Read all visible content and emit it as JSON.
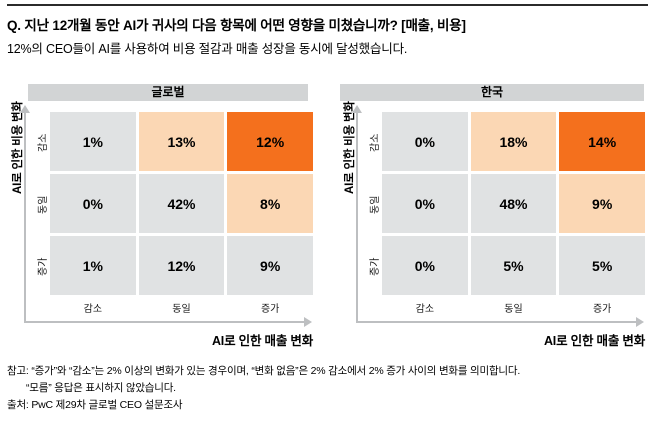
{
  "page": {
    "title": "Q. 지난 12개월 동안 AI가 귀사의 다음 항목에 어떤 영향을 미쳤습니까? [매출, 비용]",
    "subtitle": "12%의 CEO들이 AI를 사용하여 비용 절감과 매출 성장을 동시에 달성했습니다."
  },
  "axes": {
    "y_title": "AI로 인한 비용 변화",
    "x_title": "AI로 인한 매출 변화",
    "row_labels": [
      "감소",
      "동일",
      "증가"
    ],
    "col_labels": [
      "감소",
      "동일",
      "증가"
    ]
  },
  "colors": {
    "cell_gray": "#E0E2E3",
    "cell_light_orange": "#FBD7B4",
    "cell_orange": "#F4701D",
    "header_bar_gray": "#D2D4D5",
    "axis_arrow_gray": "#BDBFC1",
    "top_rule": "#2b2b2b"
  },
  "chart_data": [
    {
      "type": "heatmap",
      "title": "글로벌",
      "xlabel": "AI로 인한 매출 변화",
      "ylabel": "AI로 인한 비용 변화",
      "rows": [
        "감소",
        "동일",
        "증가"
      ],
      "cols": [
        "감소",
        "동일",
        "증가"
      ],
      "values": [
        [
          1,
          13,
          12
        ],
        [
          0,
          42,
          8
        ],
        [
          1,
          12,
          9
        ]
      ],
      "unit": "%",
      "cells": [
        [
          "1%",
          "13%",
          "12%"
        ],
        [
          "0%",
          "42%",
          "8%"
        ],
        [
          "1%",
          "12%",
          "9%"
        ]
      ],
      "cell_colors": [
        [
          "gray",
          "light_orange",
          "orange"
        ],
        [
          "gray",
          "gray",
          "light_orange"
        ],
        [
          "gray",
          "gray",
          "gray"
        ]
      ]
    },
    {
      "type": "heatmap",
      "title": "한국",
      "xlabel": "AI로 인한 매출 변화",
      "ylabel": "AI로 인한 비용 변화",
      "rows": [
        "감소",
        "동일",
        "증가"
      ],
      "cols": [
        "감소",
        "동일",
        "증가"
      ],
      "values": [
        [
          0,
          18,
          14
        ],
        [
          0,
          48,
          9
        ],
        [
          0,
          5,
          5
        ]
      ],
      "unit": "%",
      "cells": [
        [
          "0%",
          "18%",
          "14%"
        ],
        [
          "0%",
          "48%",
          "9%"
        ],
        [
          "0%",
          "5%",
          "5%"
        ]
      ],
      "cell_colors": [
        [
          "gray",
          "light_orange",
          "orange"
        ],
        [
          "gray",
          "gray",
          "light_orange"
        ],
        [
          "gray",
          "gray",
          "gray"
        ]
      ]
    }
  ],
  "footer": {
    "note1": "참고: “증가”와 “감소”는 2% 이상의 변화가 있는 경우이며, “변화 없음”은 2% 감소에서 2% 증가 사이의 변화를 의미합니다.",
    "note2": "“모름” 응답은 표시하지 않았습니다.",
    "source": "출처: PwC 제29차 글로벌 CEO 설문조사"
  }
}
